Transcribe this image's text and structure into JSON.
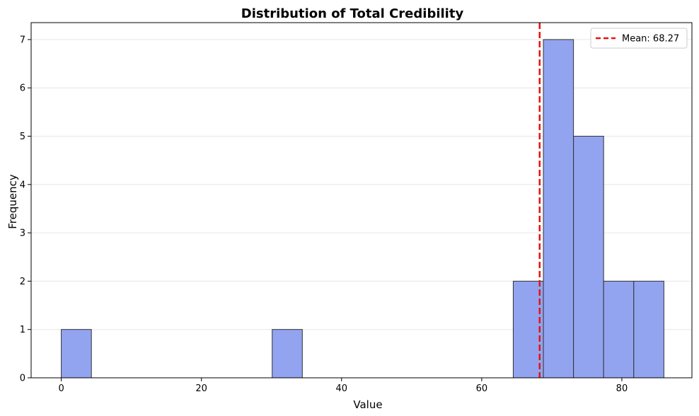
{
  "chart_data": {
    "type": "bar",
    "title": "Distribution of Total Credibility",
    "xlabel": "Value",
    "ylabel": "Frequency",
    "xlim": [
      -4.3,
      90.0
    ],
    "ylim": [
      0,
      7.35
    ],
    "xticks": [
      0,
      20,
      40,
      60,
      80
    ],
    "yticks": [
      0,
      1,
      2,
      3,
      4,
      5,
      6,
      7
    ],
    "grid": "horizontal",
    "legend_position": "top-right",
    "bins": [
      {
        "start": 0.0,
        "end": 4.3,
        "count": 1
      },
      {
        "start": 4.3,
        "end": 8.6,
        "count": 0
      },
      {
        "start": 8.6,
        "end": 12.9,
        "count": 0
      },
      {
        "start": 12.9,
        "end": 17.2,
        "count": 0
      },
      {
        "start": 17.2,
        "end": 21.5,
        "count": 0
      },
      {
        "start": 21.5,
        "end": 25.8,
        "count": 0
      },
      {
        "start": 25.8,
        "end": 30.1,
        "count": 0
      },
      {
        "start": 30.1,
        "end": 34.4,
        "count": 1
      },
      {
        "start": 34.4,
        "end": 38.7,
        "count": 0
      },
      {
        "start": 38.7,
        "end": 43.0,
        "count": 0
      },
      {
        "start": 43.0,
        "end": 47.3,
        "count": 0
      },
      {
        "start": 47.3,
        "end": 51.6,
        "count": 0
      },
      {
        "start": 51.6,
        "end": 55.9,
        "count": 0
      },
      {
        "start": 55.9,
        "end": 60.2,
        "count": 0
      },
      {
        "start": 60.2,
        "end": 64.5,
        "count": 0
      },
      {
        "start": 64.5,
        "end": 68.8,
        "count": 2
      },
      {
        "start": 68.8,
        "end": 73.1,
        "count": 7
      },
      {
        "start": 73.1,
        "end": 77.4,
        "count": 5
      },
      {
        "start": 77.4,
        "end": 81.7,
        "count": 2
      },
      {
        "start": 81.7,
        "end": 86.0,
        "count": 2
      }
    ],
    "bar_color": "#92a4f0",
    "bar_edge_color": "#333333",
    "mean": {
      "value": 68.27,
      "label": "Mean: 68.27",
      "color": "#e8120c",
      "style": "dashed"
    }
  }
}
